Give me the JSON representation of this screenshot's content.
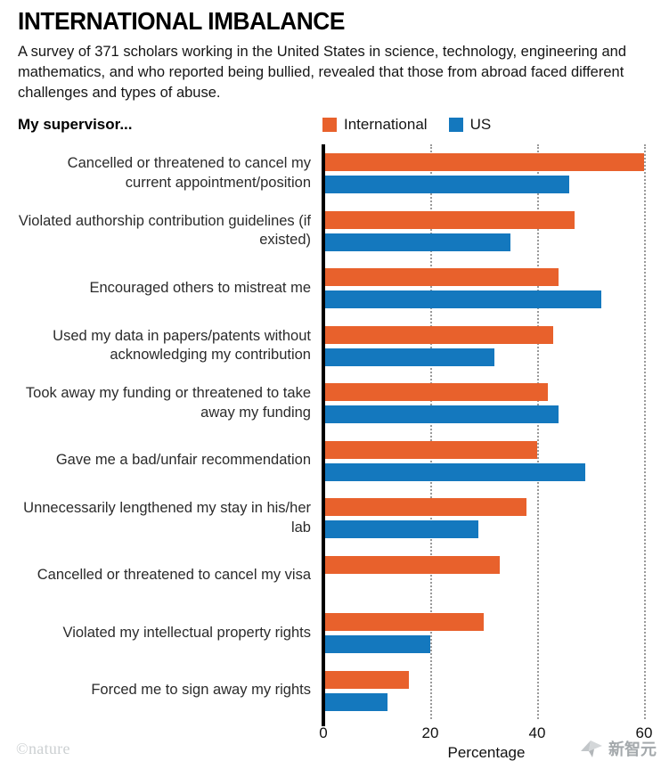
{
  "header": {
    "title": "INTERNATIONAL IMBALANCE",
    "subtitle": "A survey of 371 scholars working in the United States in science, technology, engineering and mathematics, and who reported being bullied, revealed that those from abroad faced different challenges and types of abuse."
  },
  "legend": {
    "prefix": "My supervisor...",
    "items": [
      {
        "label": "International",
        "color": "#E8612C"
      },
      {
        "label": "US",
        "color": "#1478BE"
      }
    ]
  },
  "chart_data": {
    "type": "bar",
    "orientation": "horizontal",
    "title": "INTERNATIONAL IMBALANCE",
    "categories": [
      "Cancelled or threatened to cancel my current appointment/position",
      "Violated authorship contribution guidelines (if existed)",
      "Encouraged others to mistreat me",
      "Used my data in papers/patents without acknowledging my contribution",
      "Took away my funding or threatened to take away my funding",
      "Gave me a bad/unfair recommendation",
      "Unnecessarily lengthened my stay in his/her lab",
      "Cancelled or threatened to cancel my visa",
      "Violated my intellectual property rights",
      "Forced me to sign away my rights"
    ],
    "series": [
      {
        "name": "International",
        "color": "#E8612C",
        "values": [
          60,
          47,
          44,
          43,
          42,
          40,
          38,
          33,
          30,
          16
        ]
      },
      {
        "name": "US",
        "color": "#1478BE",
        "values": [
          46,
          35,
          52,
          32,
          44,
          49,
          29,
          null,
          20,
          12
        ]
      }
    ],
    "xlabel": "Percentage",
    "xticks": [
      0,
      20,
      40,
      60
    ],
    "xlim": [
      0,
      61
    ],
    "grid": "dotted-vertical",
    "legend_position": "top"
  },
  "footer": {
    "credit": "©nature",
    "watermark": "新智元"
  }
}
